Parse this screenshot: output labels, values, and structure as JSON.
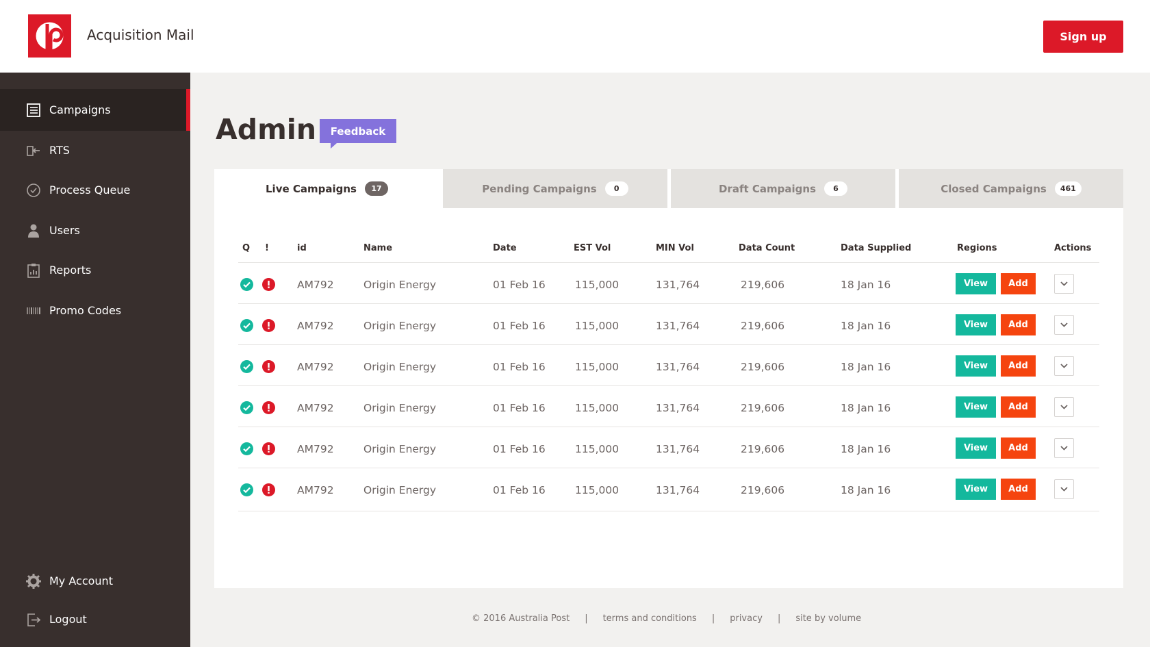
{
  "header": {
    "app_title": "Acquisition Mail",
    "signup_label": "Sign up",
    "brand_color": "#dc1928"
  },
  "sidebar": {
    "items": [
      {
        "label": "Campaigns",
        "icon": "list-icon",
        "active": true
      },
      {
        "label": "RTS",
        "icon": "return-icon",
        "active": false
      },
      {
        "label": "Process Queue",
        "icon": "clock-icon",
        "active": false
      },
      {
        "label": "Users",
        "icon": "user-icon",
        "active": false
      },
      {
        "label": "Reports",
        "icon": "report-icon",
        "active": false
      },
      {
        "label": "Promo Codes",
        "icon": "barcode-icon",
        "active": false
      }
    ],
    "bottom_items": [
      {
        "label": "My Account",
        "icon": "gear-icon"
      },
      {
        "label": "Logout",
        "icon": "logout-icon"
      }
    ]
  },
  "main": {
    "title": "Admin",
    "feedback_label": "Feedback",
    "tabs": [
      {
        "label": "Live Campaigns",
        "count": "17",
        "active": true
      },
      {
        "label": "Pending Campaigns",
        "count": "0",
        "active": false
      },
      {
        "label": "Draft Campaigns",
        "count": "6",
        "active": false
      },
      {
        "label": "Closed Campaigns",
        "count": "461",
        "active": false
      }
    ],
    "table": {
      "columns": [
        "Q",
        "!",
        "id",
        "Name",
        "Date",
        "EST Vol",
        "MIN Vol",
        "Data Count",
        "Data Supplied",
        "Regions",
        "Actions"
      ],
      "view_label": "View",
      "add_label": "Add",
      "rows": [
        {
          "id": "AM792",
          "name": "Origin Energy",
          "date": "01 Feb 16",
          "est_vol": "115,000",
          "min_vol": "131,764",
          "data_count": "219,606",
          "data_supplied": "18 Jan 16"
        },
        {
          "id": "AM792",
          "name": "Origin Energy",
          "date": "01 Feb 16",
          "est_vol": "115,000",
          "min_vol": "131,764",
          "data_count": "219,606",
          "data_supplied": "18 Jan 16"
        },
        {
          "id": "AM792",
          "name": "Origin Energy",
          "date": "01 Feb 16",
          "est_vol": "115,000",
          "min_vol": "131,764",
          "data_count": "219,606",
          "data_supplied": "18 Jan 16"
        },
        {
          "id": "AM792",
          "name": "Origin Energy",
          "date": "01 Feb 16",
          "est_vol": "115,000",
          "min_vol": "131,764",
          "data_count": "219,606",
          "data_supplied": "18 Jan 16"
        },
        {
          "id": "AM792",
          "name": "Origin Energy",
          "date": "01 Feb 16",
          "est_vol": "115,000",
          "min_vol": "131,764",
          "data_count": "219,606",
          "data_supplied": "18 Jan 16"
        },
        {
          "id": "AM792",
          "name": "Origin Energy",
          "date": "01 Feb 16",
          "est_vol": "115,000",
          "min_vol": "131,764",
          "data_count": "219,606",
          "data_supplied": "18 Jan 16"
        }
      ]
    }
  },
  "footer": {
    "copyright": "© 2016 Australia Post",
    "terms": "terms and conditions",
    "privacy": "privacy",
    "site_by": "site by volume",
    "separator": "|"
  }
}
